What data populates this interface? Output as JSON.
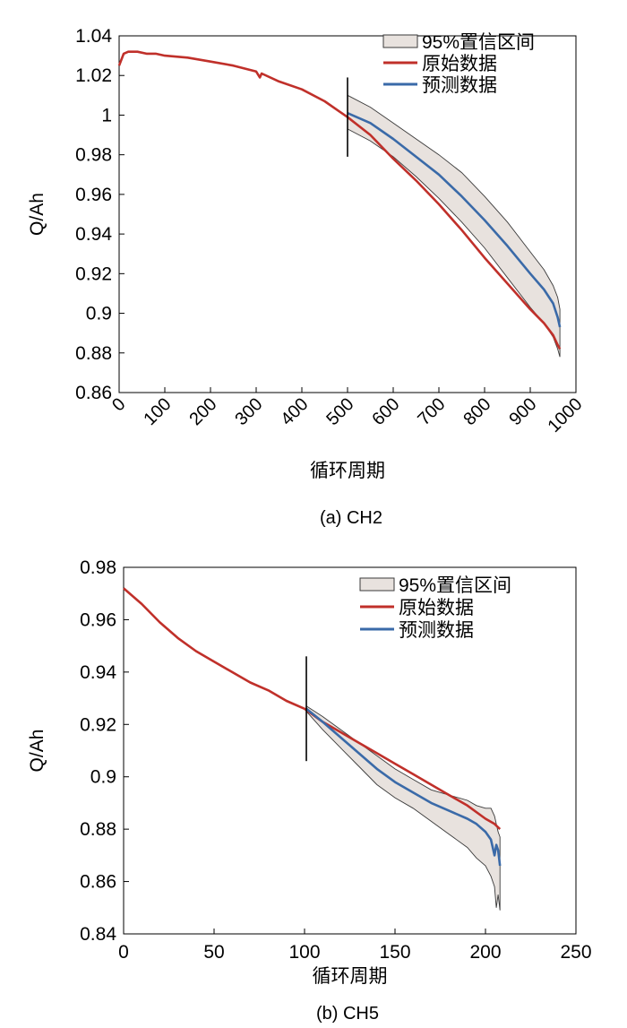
{
  "colors": {
    "original": "#c0302a",
    "predicted": "#3a6aa8",
    "band_fill": "#e8e2de",
    "band_edge": "#3a3a3a",
    "axis": "#000000"
  },
  "chart_data": [
    {
      "type": "line",
      "caption": "(a) CH2",
      "xlabel": "循环周期",
      "ylabel": "Q/Ah",
      "xlim": [
        0,
        1000
      ],
      "ylim": [
        0.86,
        1.04
      ],
      "xticks": [
        0,
        100,
        200,
        300,
        400,
        500,
        600,
        700,
        800,
        900,
        1000
      ],
      "xtick_labels": [
        "0",
        "100",
        "200",
        "300",
        "400",
        "500",
        "600",
        "700",
        "800",
        "900",
        "1000"
      ],
      "yticks": [
        0.86,
        0.88,
        0.9,
        0.92,
        0.94,
        0.96,
        0.98,
        1.0,
        1.02,
        1.04
      ],
      "ytick_labels": [
        "0.86",
        "0.88",
        "0.9",
        "0.92",
        "0.94",
        "0.96",
        "0.98",
        "1",
        "1.02",
        "1.04"
      ],
      "xtick_rotated": true,
      "legend_position": "top-right",
      "legend": [
        "95%置信区间",
        "原始数据",
        "预测数据"
      ],
      "marker_line": {
        "x": 500,
        "y_range": [
          0.979,
          1.019
        ]
      },
      "series": [
        {
          "name": "原始数据",
          "x": [
            0,
            10,
            20,
            40,
            60,
            80,
            100,
            150,
            200,
            250,
            300,
            308,
            312,
            350,
            400,
            450,
            500,
            550,
            600,
            650,
            700,
            750,
            800,
            850,
            900,
            930,
            950,
            960,
            965
          ],
          "y": [
            1.025,
            1.031,
            1.032,
            1.032,
            1.031,
            1.031,
            1.03,
            1.029,
            1.027,
            1.025,
            1.022,
            1.019,
            1.021,
            1.017,
            1.013,
            1.007,
            0.999,
            0.99,
            0.978,
            0.967,
            0.955,
            0.942,
            0.928,
            0.915,
            0.902,
            0.895,
            0.889,
            0.884,
            0.882
          ]
        },
        {
          "name": "预测数据",
          "x": [
            500,
            550,
            600,
            650,
            700,
            750,
            800,
            850,
            900,
            930,
            950,
            960,
            965
          ],
          "y": [
            1.001,
            0.996,
            0.988,
            0.979,
            0.97,
            0.959,
            0.947,
            0.934,
            0.92,
            0.912,
            0.905,
            0.898,
            0.893
          ]
        },
        {
          "name": "95%置信区间",
          "x": [
            500,
            550,
            600,
            650,
            700,
            750,
            800,
            850,
            900,
            930,
            950,
            960,
            965
          ],
          "upper": [
            1.01,
            1.004,
            0.996,
            0.988,
            0.98,
            0.971,
            0.959,
            0.946,
            0.931,
            0.922,
            0.914,
            0.908,
            0.902
          ],
          "lower": [
            0.993,
            0.987,
            0.979,
            0.969,
            0.958,
            0.946,
            0.933,
            0.918,
            0.903,
            0.895,
            0.888,
            0.882,
            0.878
          ]
        }
      ]
    },
    {
      "type": "line",
      "caption": "(b) CH5",
      "xlabel": "循环周期",
      "ylabel": "Q/Ah",
      "xlim": [
        0,
        250
      ],
      "ylim": [
        0.84,
        0.98
      ],
      "xticks": [
        0,
        50,
        100,
        150,
        200,
        250
      ],
      "xtick_labels": [
        "0",
        "50",
        "100",
        "150",
        "200",
        "250"
      ],
      "yticks": [
        0.84,
        0.86,
        0.88,
        0.9,
        0.92,
        0.94,
        0.96,
        0.98
      ],
      "ytick_labels": [
        "0.84",
        "0.86",
        "0.88",
        "0.9",
        "0.92",
        "0.94",
        "0.96",
        "0.98"
      ],
      "xtick_rotated": false,
      "legend_position": "top-right",
      "legend": [
        "95%置信区间",
        "原始数据",
        "预测数据"
      ],
      "marker_line": {
        "x": 101,
        "y_range": [
          0.906,
          0.946
        ]
      },
      "series": [
        {
          "name": "原始数据",
          "x": [
            0,
            10,
            20,
            30,
            40,
            50,
            60,
            70,
            80,
            90,
            100,
            110,
            120,
            130,
            140,
            150,
            160,
            170,
            180,
            190,
            200,
            205,
            208
          ],
          "y": [
            0.972,
            0.966,
            0.959,
            0.953,
            0.948,
            0.944,
            0.94,
            0.936,
            0.933,
            0.929,
            0.926,
            0.921,
            0.917,
            0.913,
            0.909,
            0.905,
            0.901,
            0.897,
            0.893,
            0.889,
            0.884,
            0.882,
            0.88
          ]
        },
        {
          "name": "预测数据",
          "x": [
            101,
            110,
            120,
            130,
            140,
            150,
            160,
            170,
            180,
            190,
            195,
            200,
            203,
            205,
            206,
            207,
            208
          ],
          "y": [
            0.926,
            0.921,
            0.915,
            0.909,
            0.903,
            0.898,
            0.894,
            0.89,
            0.887,
            0.884,
            0.882,
            0.879,
            0.876,
            0.87,
            0.874,
            0.872,
            0.866
          ]
        },
        {
          "name": "95%置信区间",
          "x": [
            101,
            110,
            120,
            130,
            140,
            150,
            160,
            170,
            180,
            190,
            195,
            200,
            203,
            205,
            206,
            207,
            208
          ],
          "upper": [
            0.927,
            0.923,
            0.918,
            0.913,
            0.908,
            0.903,
            0.899,
            0.895,
            0.893,
            0.891,
            0.889,
            0.888,
            0.888,
            0.885,
            0.882,
            0.879,
            0.877
          ],
          "lower": [
            0.925,
            0.918,
            0.911,
            0.904,
            0.897,
            0.892,
            0.888,
            0.883,
            0.878,
            0.873,
            0.869,
            0.866,
            0.862,
            0.858,
            0.85,
            0.855,
            0.849
          ]
        }
      ]
    }
  ]
}
